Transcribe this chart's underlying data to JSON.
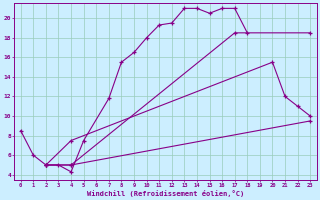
{
  "xlabel": "Windchill (Refroidissement éolien,°C)",
  "bg_color": "#cceeff",
  "line_color": "#880088",
  "grid_color": "#99ccbb",
  "xlim": [
    -0.5,
    23.5
  ],
  "ylim": [
    3.5,
    21.5
  ],
  "xticks": [
    0,
    1,
    2,
    3,
    4,
    5,
    6,
    7,
    8,
    9,
    10,
    11,
    12,
    13,
    14,
    15,
    16,
    17,
    18,
    19,
    20,
    21,
    22,
    23
  ],
  "yticks": [
    4,
    6,
    8,
    10,
    12,
    14,
    16,
    18,
    20
  ],
  "line1_x": [
    0,
    1,
    2,
    3,
    4,
    5,
    7,
    8,
    9,
    10,
    11,
    12,
    13,
    14,
    15,
    16,
    17,
    18
  ],
  "line1_y": [
    8.5,
    6.0,
    5.0,
    5.0,
    4.3,
    7.5,
    11.8,
    15.5,
    16.5,
    18.0,
    19.3,
    19.5,
    21.0,
    21.0,
    20.5,
    21.0,
    21.0,
    18.5
  ],
  "line2_x": [
    2,
    4,
    23
  ],
  "line2_y": [
    5.0,
    5.0,
    9.5
  ],
  "line3_x": [
    2,
    4,
    20,
    21,
    22,
    23
  ],
  "line3_y": [
    5.0,
    7.5,
    15.5,
    12.0,
    11.0,
    10.0
  ],
  "line4_x": [
    2,
    4,
    17,
    23
  ],
  "line4_y": [
    5.0,
    5.0,
    18.5,
    18.5
  ]
}
